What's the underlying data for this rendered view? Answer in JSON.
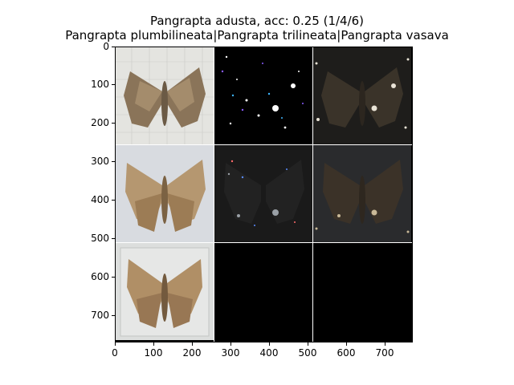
{
  "title": {
    "line1": "Pangrapta adusta, acc: 0.25 (1/4/6)",
    "line2": "Pangrapta plumbilineata|Pangrapta trilineata|Pangrapta vasava"
  },
  "axes": {
    "y_ticks": [
      "0",
      "100",
      "200",
      "300",
      "400",
      "500",
      "600",
      "700"
    ],
    "x_ticks": [
      "0",
      "100",
      "200",
      "300",
      "400",
      "500",
      "600",
      "700"
    ]
  },
  "grid": {
    "rows": 3,
    "cols": 3,
    "cells": [
      {
        "row": 0,
        "col": 0,
        "kind": "moth-photo"
      },
      {
        "row": 0,
        "col": 1,
        "kind": "saliency-noise"
      },
      {
        "row": 0,
        "col": 2,
        "kind": "overlay-dark"
      },
      {
        "row": 1,
        "col": 0,
        "kind": "moth-photo"
      },
      {
        "row": 1,
        "col": 1,
        "kind": "saliency-noise"
      },
      {
        "row": 1,
        "col": 2,
        "kind": "overlay-dark"
      },
      {
        "row": 2,
        "col": 0,
        "kind": "moth-photo"
      },
      {
        "row": 2,
        "col": 1,
        "kind": "empty"
      },
      {
        "row": 2,
        "col": 2,
        "kind": "empty"
      }
    ]
  }
}
